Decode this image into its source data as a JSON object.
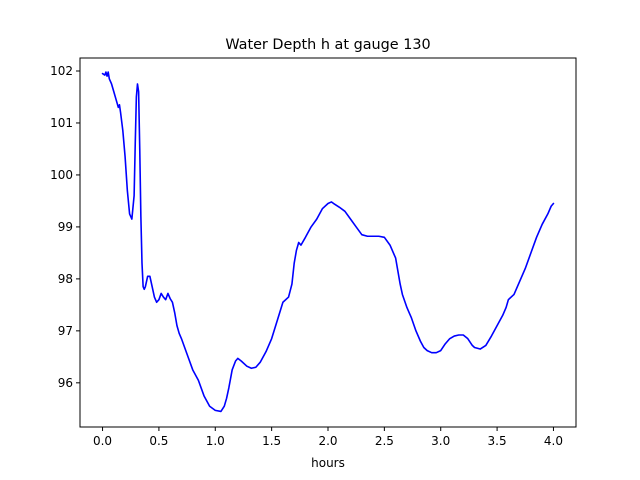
{
  "chart_data": {
    "type": "line",
    "title": "Water Depth h at gauge 130",
    "xlabel": "hours",
    "ylabel": "",
    "xlim": [
      -0.2,
      4.2
    ],
    "ylim": [
      95.15,
      102.25
    ],
    "grid": false,
    "legend": "none",
    "xticks": [
      0.0,
      0.5,
      1.0,
      1.5,
      2.0,
      2.5,
      3.0,
      3.5,
      4.0
    ],
    "xtick_labels": [
      "0.0",
      "0.5",
      "1.0",
      "1.5",
      "2.0",
      "2.5",
      "3.0",
      "3.5",
      "4.0"
    ],
    "yticks": [
      96,
      97,
      98,
      99,
      100,
      101,
      102
    ],
    "ytick_labels": [
      "96",
      "97",
      "98",
      "99",
      "100",
      "101",
      "102"
    ],
    "series": [
      {
        "color": "#0000ff",
        "x": [
          0.0,
          0.02,
          0.03,
          0.04,
          0.05,
          0.06,
          0.08,
          0.1,
          0.12,
          0.14,
          0.15,
          0.16,
          0.18,
          0.2,
          0.22,
          0.24,
          0.26,
          0.28,
          0.29,
          0.3,
          0.31,
          0.32,
          0.33,
          0.34,
          0.35,
          0.36,
          0.37,
          0.38,
          0.4,
          0.42,
          0.44,
          0.46,
          0.48,
          0.5,
          0.52,
          0.54,
          0.56,
          0.58,
          0.6,
          0.62,
          0.64,
          0.66,
          0.68,
          0.7,
          0.75,
          0.8,
          0.85,
          0.9,
          0.95,
          1.0,
          1.05,
          1.08,
          1.1,
          1.12,
          1.15,
          1.18,
          1.2,
          1.23,
          1.28,
          1.32,
          1.36,
          1.4,
          1.45,
          1.5,
          1.55,
          1.6,
          1.65,
          1.68,
          1.7,
          1.72,
          1.74,
          1.76,
          1.8,
          1.85,
          1.9,
          1.95,
          2.0,
          2.03,
          2.05,
          2.1,
          2.15,
          2.2,
          2.25,
          2.3,
          2.35,
          2.4,
          2.45,
          2.5,
          2.55,
          2.6,
          2.62,
          2.64,
          2.66,
          2.7,
          2.72,
          2.74,
          2.78,
          2.82,
          2.85,
          2.88,
          2.92,
          2.96,
          3.0,
          3.04,
          3.08,
          3.12,
          3.16,
          3.2,
          3.24,
          3.28,
          3.3,
          3.35,
          3.4,
          3.45,
          3.5,
          3.55,
          3.58,
          3.6,
          3.65,
          3.7,
          3.75,
          3.8,
          3.85,
          3.9,
          3.95,
          3.98,
          4.0
        ],
        "y": [
          101.95,
          101.92,
          101.98,
          101.9,
          101.98,
          101.85,
          101.75,
          101.6,
          101.45,
          101.3,
          101.35,
          101.2,
          100.85,
          100.35,
          99.7,
          99.25,
          99.15,
          99.6,
          100.6,
          101.5,
          101.75,
          101.6,
          100.5,
          99.2,
          98.3,
          97.85,
          97.8,
          97.85,
          98.05,
          98.05,
          97.85,
          97.65,
          97.55,
          97.6,
          97.72,
          97.65,
          97.6,
          97.72,
          97.62,
          97.55,
          97.35,
          97.1,
          96.95,
          96.85,
          96.55,
          96.25,
          96.05,
          95.75,
          95.55,
          95.47,
          95.45,
          95.55,
          95.7,
          95.9,
          96.25,
          96.42,
          96.47,
          96.42,
          96.32,
          96.28,
          96.3,
          96.4,
          96.6,
          96.85,
          97.2,
          97.55,
          97.65,
          97.9,
          98.3,
          98.55,
          98.7,
          98.65,
          98.8,
          99.0,
          99.15,
          99.35,
          99.45,
          99.48,
          99.45,
          99.38,
          99.3,
          99.15,
          99.0,
          98.85,
          98.82,
          98.82,
          98.82,
          98.8,
          98.65,
          98.4,
          98.15,
          97.9,
          97.7,
          97.45,
          97.35,
          97.25,
          97.0,
          96.8,
          96.68,
          96.62,
          96.58,
          96.58,
          96.62,
          96.75,
          96.85,
          96.9,
          96.92,
          96.92,
          96.85,
          96.72,
          96.68,
          96.65,
          96.72,
          96.9,
          97.1,
          97.3,
          97.45,
          97.6,
          97.7,
          97.95,
          98.2,
          98.5,
          98.8,
          99.05,
          99.25,
          99.4,
          99.45
        ]
      }
    ]
  }
}
